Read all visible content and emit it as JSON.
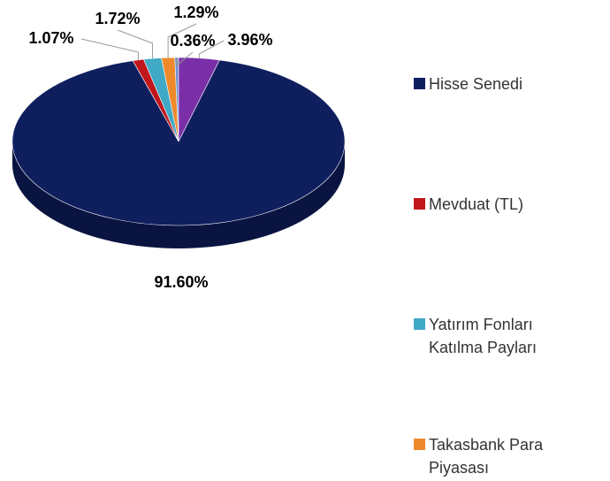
{
  "chart_data": {
    "type": "pie",
    "categories": [
      "Hisse Senedi",
      "Mevduat (TL)",
      "Yatırım Fonları Katılma Payları",
      "Takasbank Para Piyasası",
      null,
      null
    ],
    "values": [
      91.6,
      1.07,
      1.72,
      1.29,
      0.36,
      3.96
    ],
    "value_labels": [
      "91.60%",
      "1.07%",
      "1.72%",
      "1.29%",
      "0.36%",
      "3.96%"
    ],
    "colors": [
      "#0f1f5e",
      "#c0161c",
      "#3fa9c6",
      "#ee8a2c",
      "#6a8fd0",
      "#7a2fa8"
    ],
    "legend": "right"
  }
}
